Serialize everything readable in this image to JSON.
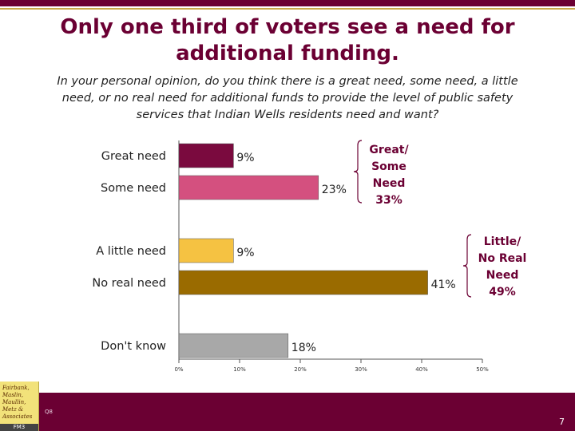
{
  "title": "Only one third of voters see a need for additional funding.",
  "question": "In your personal opinion, do you think there is a great need, some need, a little need, or no real need for additional funds to provide the level of public safety services that Indian Wells residents need and want?",
  "chart_data": {
    "type": "bar",
    "orientation": "horizontal",
    "categories": [
      "Great need",
      "Some need",
      "A little need",
      "No real need",
      "Don't know"
    ],
    "values": [
      9,
      23,
      9,
      41,
      18
    ],
    "value_labels": [
      "9%",
      "23%",
      "9%",
      "41%",
      "18%"
    ],
    "colors": [
      "#7a0a3e",
      "#d4507f",
      "#f5c242",
      "#9a6b00",
      "#a8a8a8"
    ],
    "xlim": [
      0,
      50
    ],
    "xticks": [
      "0%",
      "10%",
      "20%",
      "30%",
      "40%",
      "50%"
    ],
    "grid": false
  },
  "annotations": [
    {
      "lines": [
        "Great/",
        "Some",
        "Need",
        "33%"
      ],
      "color": "#6b0033"
    },
    {
      "lines": [
        "Little/",
        "No Real",
        "Need",
        "49%"
      ],
      "color": "#6b0033"
    }
  ],
  "logo": {
    "lines": [
      "Fairbank,",
      "Maslin,",
      "Maullin,",
      "Metz &",
      "Associates"
    ],
    "badge": "FM3"
  },
  "footer": {
    "question_number": "Q8",
    "page_number": "7"
  },
  "colors": {
    "brand": "#6b0033",
    "accent": "#c9a94a"
  }
}
